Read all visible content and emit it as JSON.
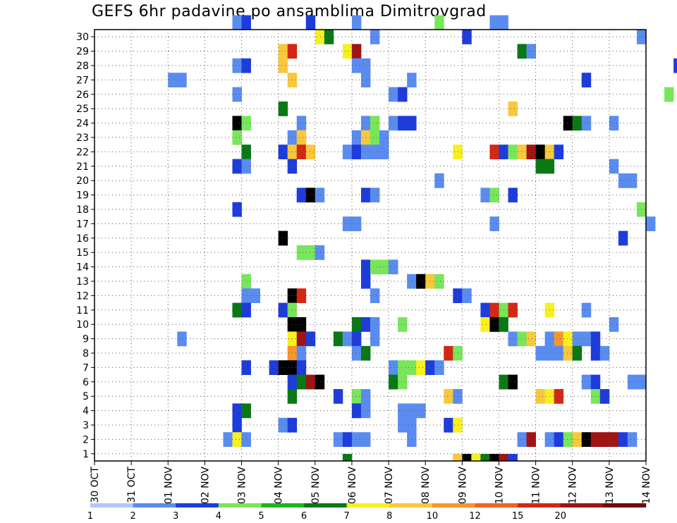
{
  "chart_data": {
    "type": "heatmap",
    "title": "GEFS 6hr padavine po ansamblima Dimitrovgrad",
    "xlabel": "",
    "ylabel": "",
    "x_ticks": [
      "30 OCT",
      "31 OCT",
      "01 NOV",
      "02 NOV",
      "03 NOV",
      "04 NOV",
      "05 NOV",
      "06 NOV",
      "07 NOV",
      "08 NOV",
      "09 NOV",
      "10 NOV",
      "11 NOV",
      "12 NOV",
      "13 NOV",
      "14 NOV"
    ],
    "x_range_steps": [
      0,
      60
    ],
    "y_ticks": [
      1,
      2,
      3,
      4,
      5,
      6,
      7,
      8,
      9,
      10,
      11,
      12,
      13,
      14,
      15,
      16,
      17,
      18,
      19,
      20,
      21,
      22,
      23,
      24,
      25,
      26,
      27,
      28,
      29,
      30
    ],
    "y_range": [
      0,
      30
    ],
    "grid": true,
    "legend_position": "bottom",
    "colorbar": {
      "labels": [
        "1",
        "2",
        "3",
        "4",
        "5",
        "6",
        "7",
        "8",
        "10",
        "12",
        "15",
        "20"
      ],
      "colors": [
        "#b4c8f8",
        "#5a8cf0",
        "#1e3cdc",
        "#78e65a",
        "#1eb41e",
        "#0a7814",
        "#f8f01e",
        "#f8c83c",
        "#f89628",
        "#f0641e",
        "#d22814",
        "#a01414",
        "#6e0a0a"
      ]
    },
    "cells": [
      [
        30,
        15,
        1
      ],
      [
        30,
        16,
        2
      ],
      [
        30,
        23,
        2
      ],
      [
        30,
        28,
        1
      ],
      [
        30,
        37,
        3
      ],
      [
        30,
        43,
        1
      ],
      [
        30,
        44,
        1
      ],
      [
        29,
        24,
        6
      ],
      [
        29,
        25,
        5
      ],
      [
        29,
        30,
        1
      ],
      [
        29,
        40,
        2
      ],
      [
        29,
        59,
        1
      ],
      [
        28,
        20,
        7
      ],
      [
        28,
        21,
        10
      ],
      [
        28,
        27,
        6
      ],
      [
        28,
        28,
        11
      ],
      [
        28,
        46,
        5
      ],
      [
        28,
        47,
        1
      ],
      [
        27,
        15,
        1
      ],
      [
        27,
        16,
        2
      ],
      [
        27,
        20,
        7
      ],
      [
        27,
        28,
        1
      ],
      [
        27,
        29,
        1
      ],
      [
        27,
        63,
        2
      ],
      [
        26,
        8,
        1
      ],
      [
        26,
        9,
        1
      ],
      [
        26,
        21,
        7
      ],
      [
        26,
        29,
        1
      ],
      [
        26,
        34,
        1
      ],
      [
        26,
        53,
        2
      ],
      [
        25,
        15,
        1
      ],
      [
        25,
        32,
        1
      ],
      [
        25,
        33,
        2
      ],
      [
        25,
        62,
        3
      ],
      [
        24,
        20,
        5
      ],
      [
        24,
        45,
        7
      ],
      [
        23,
        15,
        14
      ],
      [
        23,
        16,
        3
      ],
      [
        23,
        22,
        1
      ],
      [
        23,
        29,
        1
      ],
      [
        23,
        30,
        3
      ],
      [
        23,
        32,
        1
      ],
      [
        23,
        33,
        2
      ],
      [
        23,
        34,
        2
      ],
      [
        23,
        51,
        13
      ],
      [
        23,
        52,
        5
      ],
      [
        23,
        53,
        1
      ],
      [
        23,
        56,
        1
      ],
      [
        22,
        15,
        3
      ],
      [
        22,
        21,
        1
      ],
      [
        22,
        22,
        7
      ],
      [
        22,
        28,
        1
      ],
      [
        22,
        29,
        7
      ],
      [
        22,
        30,
        3
      ],
      [
        22,
        31,
        1
      ],
      [
        21,
        16,
        5
      ],
      [
        21,
        20,
        2
      ],
      [
        21,
        21,
        7
      ],
      [
        21,
        22,
        10
      ],
      [
        21,
        23,
        7
      ],
      [
        21,
        27,
        1
      ],
      [
        21,
        28,
        2
      ],
      [
        21,
        29,
        1
      ],
      [
        21,
        30,
        1
      ],
      [
        21,
        31,
        1
      ],
      [
        21,
        39,
        6
      ],
      [
        21,
        43,
        10
      ],
      [
        21,
        44,
        2
      ],
      [
        21,
        45,
        3
      ],
      [
        21,
        46,
        7
      ],
      [
        21,
        47,
        11
      ],
      [
        21,
        48,
        13
      ],
      [
        21,
        49,
        7
      ],
      [
        21,
        50,
        2
      ],
      [
        20,
        15,
        2
      ],
      [
        20,
        16,
        1
      ],
      [
        20,
        21,
        2
      ],
      [
        20,
        48,
        5
      ],
      [
        20,
        49,
        5
      ],
      [
        20,
        56,
        1
      ],
      [
        19,
        37,
        1
      ],
      [
        19,
        57,
        1
      ],
      [
        19,
        58,
        1
      ],
      [
        18,
        22,
        2
      ],
      [
        18,
        23,
        13
      ],
      [
        18,
        24,
        1
      ],
      [
        18,
        29,
        2
      ],
      [
        18,
        30,
        1
      ],
      [
        18,
        42,
        1
      ],
      [
        18,
        43,
        3
      ],
      [
        18,
        45,
        2
      ],
      [
        17,
        15,
        2
      ],
      [
        17,
        59,
        3
      ],
      [
        16,
        27,
        1
      ],
      [
        16,
        28,
        1
      ],
      [
        16,
        43,
        1
      ],
      [
        16,
        60,
        1
      ],
      [
        15,
        20,
        13
      ],
      [
        15,
        57,
        2
      ],
      [
        14,
        22,
        3
      ],
      [
        14,
        23,
        3
      ],
      [
        14,
        24,
        1
      ],
      [
        13,
        29,
        2
      ],
      [
        13,
        30,
        3
      ],
      [
        13,
        31,
        3
      ],
      [
        13,
        32,
        1
      ],
      [
        12,
        16,
        3
      ],
      [
        12,
        29,
        2
      ],
      [
        12,
        34,
        1
      ],
      [
        12,
        35,
        13
      ],
      [
        12,
        36,
        7
      ],
      [
        12,
        37,
        3
      ],
      [
        11,
        16,
        1
      ],
      [
        11,
        17,
        1
      ],
      [
        11,
        21,
        13
      ],
      [
        11,
        22,
        10
      ],
      [
        11,
        30,
        1
      ],
      [
        11,
        39,
        2
      ],
      [
        11,
        40,
        1
      ],
      [
        10,
        15,
        5
      ],
      [
        10,
        16,
        2
      ],
      [
        10,
        20,
        2
      ],
      [
        10,
        21,
        3
      ],
      [
        10,
        42,
        2
      ],
      [
        10,
        43,
        10
      ],
      [
        10,
        44,
        3
      ],
      [
        10,
        45,
        10
      ],
      [
        10,
        49,
        6
      ],
      [
        10,
        53,
        1
      ],
      [
        9,
        21,
        13
      ],
      [
        9,
        22,
        14
      ],
      [
        9,
        28,
        5
      ],
      [
        9,
        29,
        2
      ],
      [
        9,
        30,
        1
      ],
      [
        9,
        33,
        3
      ],
      [
        9,
        42,
        6
      ],
      [
        9,
        43,
        14
      ],
      [
        9,
        44,
        5
      ],
      [
        9,
        56,
        1
      ],
      [
        8,
        9,
        1
      ],
      [
        8,
        21,
        6
      ],
      [
        8,
        22,
        11
      ],
      [
        8,
        23,
        2
      ],
      [
        8,
        26,
        5
      ],
      [
        8,
        27,
        1
      ],
      [
        8,
        28,
        2
      ],
      [
        8,
        30,
        1
      ],
      [
        8,
        45,
        1
      ],
      [
        8,
        46,
        3
      ],
      [
        8,
        47,
        7
      ],
      [
        8,
        49,
        1
      ],
      [
        8,
        50,
        8
      ],
      [
        8,
        51,
        6
      ],
      [
        8,
        52,
        1
      ],
      [
        8,
        53,
        1
      ],
      [
        8,
        54,
        2
      ],
      [
        7,
        21,
        8
      ],
      [
        7,
        22,
        1
      ],
      [
        7,
        28,
        1
      ],
      [
        7,
        29,
        5
      ],
      [
        7,
        38,
        10
      ],
      [
        7,
        39,
        3
      ],
      [
        7,
        48,
        1
      ],
      [
        7,
        49,
        1
      ],
      [
        7,
        50,
        1
      ],
      [
        7,
        51,
        7
      ],
      [
        7,
        52,
        5
      ],
      [
        7,
        54,
        2
      ],
      [
        7,
        55,
        1
      ],
      [
        6,
        16,
        2
      ],
      [
        6,
        19,
        2
      ],
      [
        6,
        20,
        14
      ],
      [
        6,
        21,
        14
      ],
      [
        6,
        22,
        2
      ],
      [
        6,
        32,
        1
      ],
      [
        6,
        33,
        3
      ],
      [
        6,
        34,
        3
      ],
      [
        6,
        35,
        6
      ],
      [
        6,
        36,
        2
      ],
      [
        6,
        37,
        1
      ],
      [
        5,
        21,
        2
      ],
      [
        5,
        22,
        5
      ],
      [
        5,
        23,
        11
      ],
      [
        5,
        24,
        13
      ],
      [
        5,
        32,
        5
      ],
      [
        5,
        33,
        3
      ],
      [
        5,
        44,
        5
      ],
      [
        5,
        45,
        13
      ],
      [
        5,
        53,
        1
      ],
      [
        5,
        54,
        2
      ],
      [
        5,
        58,
        1
      ],
      [
        5,
        59,
        1
      ],
      [
        4,
        21,
        5
      ],
      [
        4,
        26,
        2
      ],
      [
        4,
        28,
        3
      ],
      [
        4,
        29,
        1
      ],
      [
        4,
        38,
        7
      ],
      [
        4,
        39,
        1
      ],
      [
        4,
        48,
        7
      ],
      [
        4,
        49,
        6
      ],
      [
        4,
        50,
        10
      ],
      [
        4,
        54,
        3
      ],
      [
        4,
        55,
        2
      ],
      [
        3,
        15,
        2
      ],
      [
        3,
        16,
        5
      ],
      [
        3,
        28,
        2
      ],
      [
        3,
        29,
        1
      ],
      [
        3,
        33,
        1
      ],
      [
        3,
        34,
        1
      ],
      [
        3,
        35,
        1
      ],
      [
        2,
        15,
        2
      ],
      [
        2,
        20,
        1
      ],
      [
        2,
        21,
        2
      ],
      [
        2,
        33,
        1
      ],
      [
        2,
        34,
        1
      ],
      [
        2,
        38,
        2
      ],
      [
        2,
        39,
        6
      ],
      [
        1,
        14,
        1
      ],
      [
        1,
        15,
        6
      ],
      [
        1,
        16,
        1
      ],
      [
        1,
        26,
        1
      ],
      [
        1,
        27,
        2
      ],
      [
        1,
        28,
        1
      ],
      [
        1,
        29,
        1
      ],
      [
        1,
        34,
        1
      ],
      [
        1,
        46,
        1
      ],
      [
        1,
        47,
        11
      ],
      [
        1,
        49,
        1
      ],
      [
        1,
        50,
        2
      ],
      [
        1,
        51,
        3
      ],
      [
        1,
        52,
        7
      ],
      [
        1,
        53,
        13
      ],
      [
        1,
        54,
        11
      ],
      [
        1,
        55,
        11
      ],
      [
        1,
        56,
        11
      ],
      [
        1,
        57,
        2
      ],
      [
        1,
        58,
        1
      ],
      [
        0,
        27,
        5
      ],
      [
        0,
        39,
        7
      ],
      [
        0,
        40,
        14
      ],
      [
        0,
        41,
        6
      ],
      [
        0,
        42,
        5
      ],
      [
        0,
        43,
        13
      ],
      [
        0,
        44,
        11
      ],
      [
        0,
        45,
        2
      ]
    ]
  }
}
